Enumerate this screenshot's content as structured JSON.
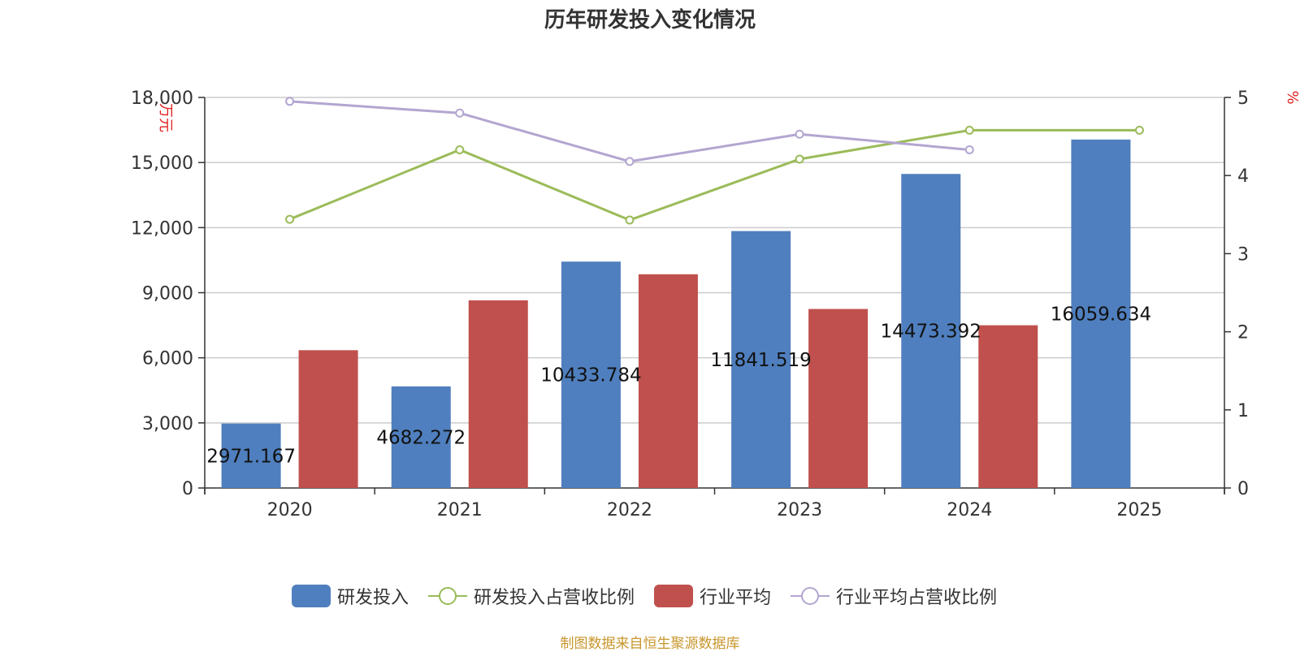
{
  "chart_data": {
    "type": "bar",
    "title": "历年研发投入变化情况",
    "categories": [
      "2020",
      "2021",
      "2022",
      "2023",
      "2024",
      "2025"
    ],
    "y_left": {
      "unit": "万元",
      "lim": [
        0,
        18000
      ],
      "ticks": [
        "0",
        "3,000",
        "6,000",
        "9,000",
        "12,000",
        "15,000",
        "18,000"
      ]
    },
    "y_right": {
      "unit": "%",
      "lim": [
        0,
        5
      ],
      "ticks": [
        "0",
        "1",
        "2",
        "3",
        "4",
        "5"
      ]
    },
    "series": [
      {
        "name": "研发投入",
        "kind": "bar",
        "axis": "left",
        "color": "#4f7fbe",
        "values": [
          2971.167,
          4682.272,
          10433.784,
          11841.519,
          14473.392,
          16059.634
        ],
        "labels": [
          "2971.167",
          "4682.272",
          "10433.784",
          "11841.519",
          "14473.392",
          "16059.634"
        ]
      },
      {
        "name": "行业平均",
        "kind": "bar",
        "axis": "left",
        "color": "#c0504d",
        "values": [
          6350,
          8650,
          9850,
          8250,
          7500,
          null
        ]
      },
      {
        "name": "研发投入占营收比例",
        "kind": "line",
        "axis": "right",
        "color": "#9bbb59",
        "values": [
          3.44,
          4.33,
          3.43,
          4.21,
          4.58,
          4.58
        ]
      },
      {
        "name": "行业平均占营收比例",
        "kind": "line",
        "axis": "right",
        "color": "#b3a6d0",
        "values": [
          4.95,
          4.8,
          4.18,
          4.53,
          4.33,
          null
        ]
      }
    ],
    "legend": {
      "position": "bottom",
      "order": [
        "研发投入",
        "研发投入占营收比例",
        "行业平均",
        "行业平均占营收比例"
      ]
    },
    "grid": true,
    "source": "制图数据来自恒生聚源数据库"
  }
}
